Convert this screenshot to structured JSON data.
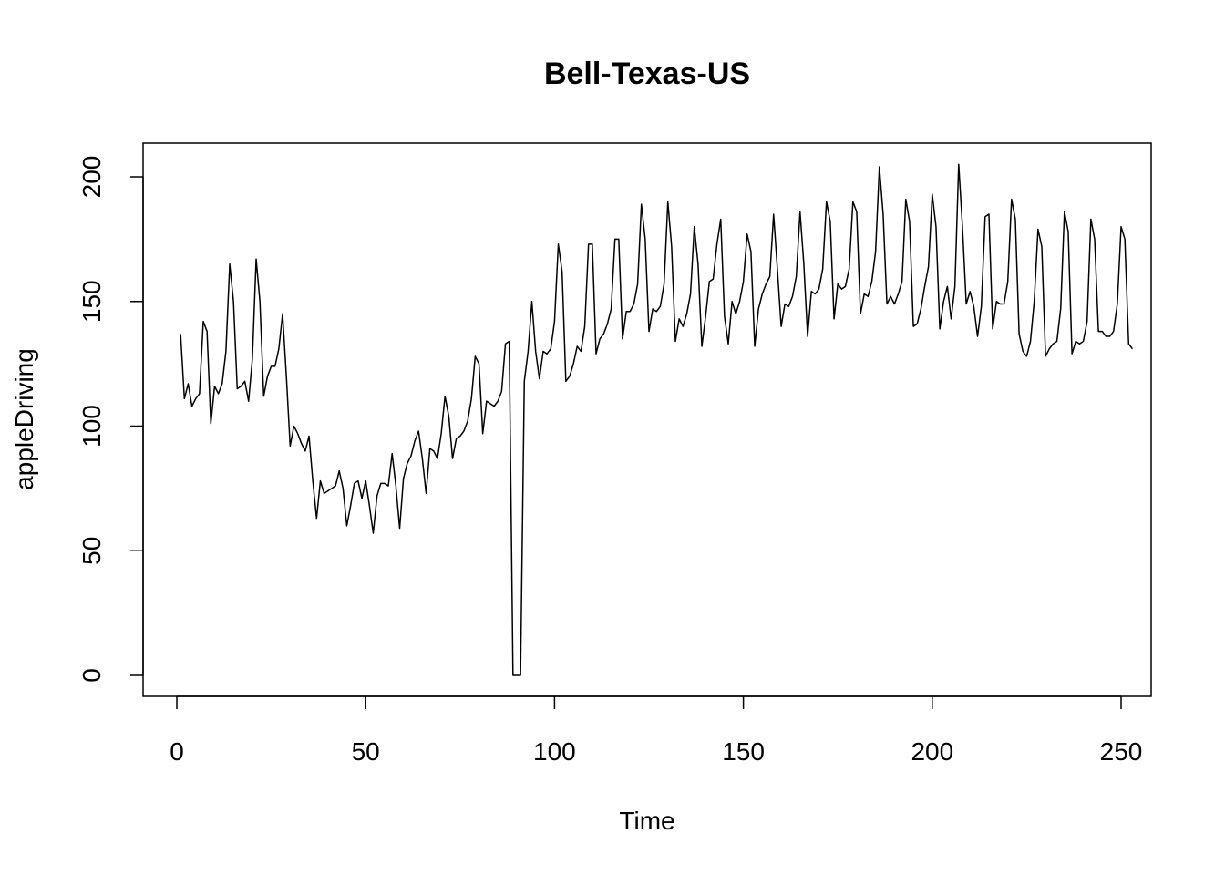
{
  "chart_data": {
    "type": "line",
    "title": "Bell-Texas-US",
    "xlabel": "Time",
    "ylabel": "appleDriving",
    "xlim": [
      1,
      248
    ],
    "ylim": [
      0,
      205
    ],
    "x_ticks": [
      0,
      50,
      100,
      150,
      200,
      250
    ],
    "y_ticks": [
      0,
      50,
      100,
      150,
      200
    ],
    "grid": false,
    "legend": "none",
    "series": [
      {
        "x_start": 1,
        "x_step": 1,
        "values": [
          137,
          111,
          117,
          108,
          111,
          113,
          142,
          138,
          101,
          116,
          113,
          117,
          130,
          165,
          150,
          115,
          116,
          118,
          110,
          127,
          167,
          150,
          112,
          120,
          124,
          124,
          131,
          145,
          120,
          92,
          100,
          97,
          93,
          90,
          96,
          78,
          63,
          78,
          73,
          74,
          75,
          76,
          82,
          75,
          60,
          68,
          77,
          78,
          71,
          78,
          68,
          57,
          72,
          77,
          77,
          76,
          89,
          76,
          59,
          79,
          85,
          88,
          94,
          98,
          87,
          73,
          91,
          90,
          87,
          97,
          112,
          104,
          87,
          95,
          96,
          98,
          102,
          111,
          128,
          125,
          97,
          110,
          109,
          108,
          110,
          114,
          133,
          134,
          0,
          0,
          0,
          118,
          130,
          150,
          130,
          119,
          130,
          129,
          131,
          142,
          173,
          162,
          118,
          120,
          125,
          132,
          130,
          140,
          173,
          173,
          129,
          135,
          137,
          141,
          147,
          175,
          175,
          135,
          146,
          146,
          149,
          157,
          189,
          175,
          138,
          147,
          146,
          148,
          157,
          190,
          172,
          134,
          143,
          140,
          145,
          153,
          180,
          165,
          132,
          144,
          158,
          159,
          173,
          183,
          144,
          133,
          150,
          145,
          150,
          158,
          177,
          170,
          132,
          147,
          153,
          157,
          160,
          185,
          163,
          140,
          149,
          148,
          152,
          160,
          186,
          165,
          136,
          154,
          153,
          155,
          163,
          190,
          182,
          143,
          157,
          155,
          156,
          163,
          190,
          186,
          145,
          153,
          152,
          158,
          170,
          204,
          185,
          149,
          152,
          149,
          153,
          158,
          191,
          182,
          140,
          141,
          147,
          156,
          164,
          193,
          180,
          139,
          150,
          156,
          143,
          156,
          205,
          180,
          149,
          154,
          148,
          136,
          148,
          184,
          185,
          139,
          150,
          149,
          149,
          158,
          191,
          183,
          137,
          130,
          128,
          134,
          150,
          179,
          172,
          128,
          131,
          133,
          134,
          147,
          186,
          178,
          129,
          134,
          133,
          134,
          142,
          183,
          175,
          138,
          138,
          136,
          136,
          138,
          149,
          180,
          175,
          133,
          131
        ]
      }
    ]
  }
}
